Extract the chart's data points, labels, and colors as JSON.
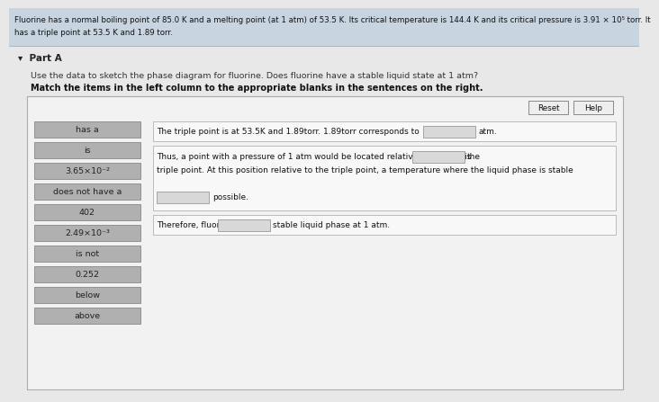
{
  "bg_color": "#e8e8e8",
  "header_bg": "#c8d4e0",
  "header_text_line1": "Fluorine has a normal boiling point of 85.0 K and a melting point (at 1 atm) of 53.5 K. Its critical temperature is 144.4 K and its critical pressure is 3.91 × 10⁵ torr. It",
  "header_text_line2": "has a triple point at 53.5 K and 1.89 torr.",
  "part_label": "▾  Part A",
  "instruction1": "Use the data to sketch the phase diagram for fluorine. Does fluorine have a stable liquid state at 1 atm?",
  "instruction2": "Match the items in the left column to the appropriate blanks in the sentences on the right.",
  "left_items": [
    "has a",
    "is",
    "3.65×10⁻²",
    "does not have a",
    "402",
    "2.49×10⁻³",
    "is not",
    "0.252",
    "below",
    "above"
  ],
  "sentence1_pre": "The triple point is at 53.5K and 1.89torr. 1.89torr corresponds to",
  "sentence1_post": "atm.",
  "sentence2a_pre": "Thus, a point with a pressure of 1 atm would be located relative to the y axis",
  "sentence2a_post": "the",
  "sentence2b": "triple point. At this position relative to the triple point, a temperature where the liquid phase is stable",
  "sentence2c_post": "possible.",
  "sentence3_pre": "Therefore, fluorine",
  "sentence3_post": "stable liquid phase at 1 atm.",
  "button_reset": "Reset",
  "button_help": "Help",
  "panel_bg": "#f2f2f2",
  "panel_border": "#aaaaaa",
  "item_bg": "#b0b0b0",
  "item_text_color": "#222222",
  "blank_bg": "#d8d8d8",
  "blank_border": "#999999",
  "box_bg": "#f8f8f8",
  "box_border": "#bbbbbb"
}
